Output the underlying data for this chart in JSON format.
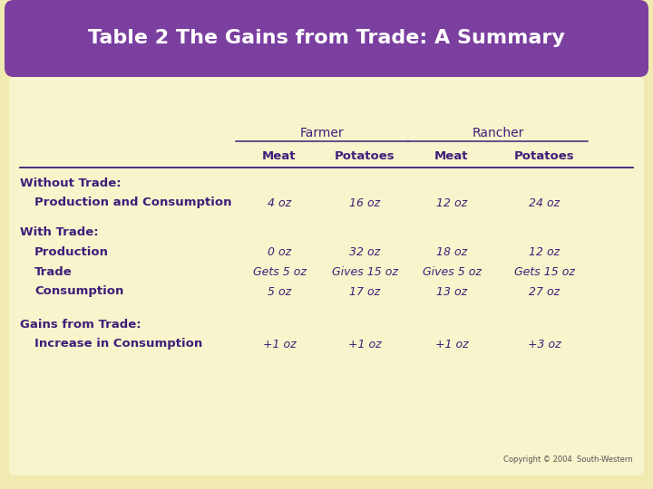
{
  "title": "Table 2 The Gains from Trade: A Summary",
  "title_bg_color": "#7B3FA0",
  "title_text_color": "#FFFFFF",
  "bg_color": "#F0EAB0",
  "purple_color": "#3D1F7A",
  "copyright": "Copyright © 2004  South-Western",
  "farmer_label": "Farmer",
  "rancher_label": "Rancher",
  "col_sub": [
    "Meat",
    "Potatoes",
    "Meat",
    "Potatoes"
  ],
  "sections": [
    {
      "header": "Without Trade:",
      "rows": [
        {
          "label": "Production and Consumption",
          "values": [
            "4 oz",
            "16 oz",
            "12 oz",
            "24 oz"
          ]
        }
      ]
    },
    {
      "header": "With Trade:",
      "rows": [
        {
          "label": "Production",
          "values": [
            "0 oz",
            "32 oz",
            "18 oz",
            "12 oz"
          ]
        },
        {
          "label": "Trade",
          "values": [
            "Gets 5 oz",
            "Gives 15 oz",
            "Gives 5 oz",
            "Gets 15 oz"
          ]
        },
        {
          "label": "Consumption",
          "values": [
            "5 oz",
            "17 oz",
            "13 oz",
            "27 oz"
          ]
        }
      ]
    },
    {
      "header": "Gains from Trade:",
      "rows": [
        {
          "label": "Increase in Consumption",
          "values": [
            "+1 oz",
            "+1 oz",
            "+1 oz",
            "+3 oz"
          ]
        }
      ]
    }
  ]
}
